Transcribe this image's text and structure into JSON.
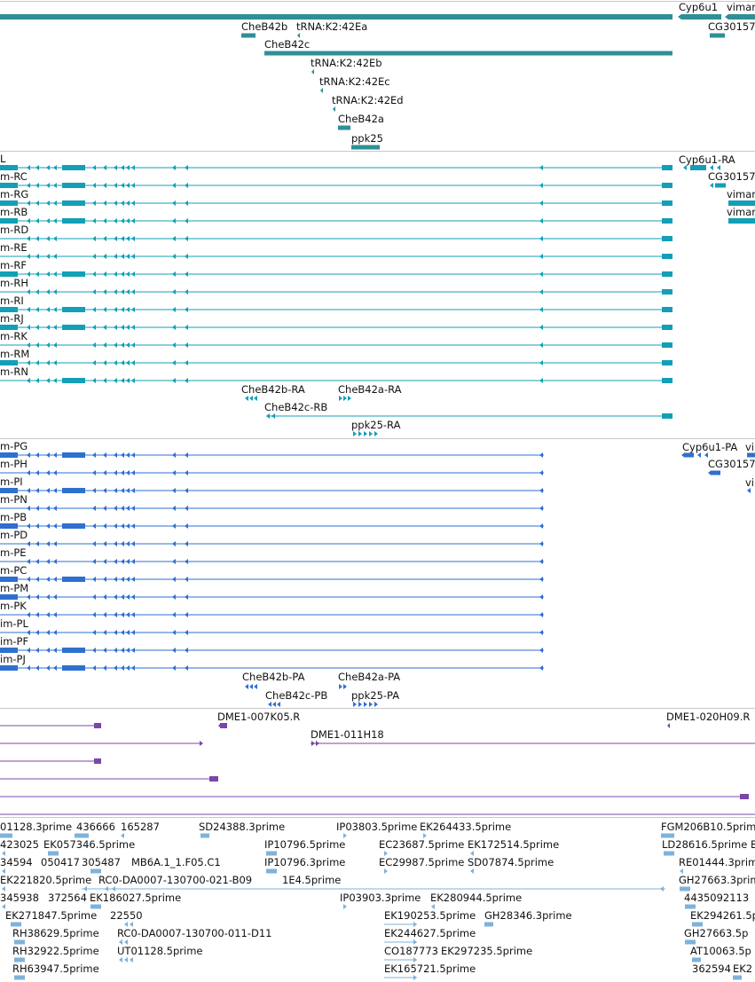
{
  "colors": {
    "gene": "#2f8f95",
    "mrna": "#139fb6",
    "protein": "#2f6fcf",
    "clone": "#7a47a9",
    "est": "#7fb2d9",
    "divider": "#c8c8c8"
  },
  "tracks": {
    "genes": {
      "features": [
        {
          "label": "Cyp6u1"
        },
        {
          "label": "vimar"
        },
        {
          "label": "CheB42b"
        },
        {
          "label": "tRNA:K2:42Ea"
        },
        {
          "label": "CG30157"
        },
        {
          "label": "CheB42c"
        },
        {
          "label": "tRNA:K2:42Eb"
        },
        {
          "label": "tRNA:K2:42Ec"
        },
        {
          "label": "tRNA:K2:42Ed"
        },
        {
          "label": "CheB42a"
        },
        {
          "label": "ppk25"
        }
      ]
    },
    "transcripts": {
      "features": [
        {
          "label": "L"
        },
        {
          "label": "Cyp6u1-RA"
        },
        {
          "label": "m-RC"
        },
        {
          "label": "CG30157"
        },
        {
          "label": "m-RG"
        },
        {
          "label": "vimar"
        },
        {
          "label": "m-RB"
        },
        {
          "label": "vimar"
        },
        {
          "label": "m-RD"
        },
        {
          "label": "m-RE"
        },
        {
          "label": "m-RF"
        },
        {
          "label": "m-RH"
        },
        {
          "label": "m-RI"
        },
        {
          "label": "m-RJ"
        },
        {
          "label": "m-RK"
        },
        {
          "label": "m-RM"
        },
        {
          "label": "m-RN"
        },
        {
          "label": "CheB42b-RA"
        },
        {
          "label": "CheB42a-RA"
        },
        {
          "label": "CheB42c-RB"
        },
        {
          "label": "ppk25-RA"
        }
      ]
    },
    "polypeptides": {
      "features": [
        {
          "label": "m-PG"
        },
        {
          "label": "Cyp6u1-PA"
        },
        {
          "label": "vi"
        },
        {
          "label": "m-PH"
        },
        {
          "label": "CG30157"
        },
        {
          "label": "m-PI"
        },
        {
          "label": "vi"
        },
        {
          "label": "m-PN"
        },
        {
          "label": "m-PB"
        },
        {
          "label": "m-PD"
        },
        {
          "label": "m-PE"
        },
        {
          "label": "m-PC"
        },
        {
          "label": "m-PM"
        },
        {
          "label": "m-PK"
        },
        {
          "label": "im-PL"
        },
        {
          "label": "im-PF"
        },
        {
          "label": "im-PJ"
        },
        {
          "label": "CheB42b-PA"
        },
        {
          "label": "CheB42a-PA"
        },
        {
          "label": "CheB42c-PB"
        },
        {
          "label": "ppk25-PA"
        }
      ]
    },
    "clones": {
      "features": [
        {
          "label": "DME1-007K05.R"
        },
        {
          "label": "DME1-020H09.R"
        },
        {
          "label": "DME1-011H18"
        }
      ]
    },
    "ests": {
      "features": [
        {
          "label": "01128.3prime"
        },
        {
          "label": "436666"
        },
        {
          "label": "165287"
        },
        {
          "label": "SD24388.3prime"
        },
        {
          "label": "IP03803.5prime"
        },
        {
          "label": "EK264433.5prime"
        },
        {
          "label": "FGM206B10.5prime"
        },
        {
          "label": "423025"
        },
        {
          "label": "EK057346.5prime"
        },
        {
          "label": "IP10796.5prime"
        },
        {
          "label": "EC23687.5prime"
        },
        {
          "label": "EK172514.5prime"
        },
        {
          "label": "LD28616.5prime"
        },
        {
          "label": "E"
        },
        {
          "label": "34594"
        },
        {
          "label": "050417"
        },
        {
          "label": "305487"
        },
        {
          "label": "MB6A.1_1.F05.C1"
        },
        {
          "label": "IP10796.3prime"
        },
        {
          "label": "EC29987.5prime"
        },
        {
          "label": "SD07874.5prime"
        },
        {
          "label": "RE01444.3prime"
        },
        {
          "label": "EK221820.5prime"
        },
        {
          "label": "RC0-DA0007-130700-021-B09"
        },
        {
          "label": "1E4.5prime"
        },
        {
          "label": "GH27663.3prime"
        },
        {
          "label": "345938"
        },
        {
          "label": "372564"
        },
        {
          "label": "EK186027.5prime"
        },
        {
          "label": "IP03903.3prime"
        },
        {
          "label": "EK280944.5prime"
        },
        {
          "label": "4435092113"
        },
        {
          "label": "EK271847.5prime"
        },
        {
          "label": "22550"
        },
        {
          "label": "EK190253.5prime"
        },
        {
          "label": "GH28346.3prime"
        },
        {
          "label": "EK294261.5p"
        },
        {
          "label": "RH38629.5prime"
        },
        {
          "label": "RC0-DA0007-130700-011-D11"
        },
        {
          "label": "EK244627.5prime"
        },
        {
          "label": "GH27663.5p"
        },
        {
          "label": "RH32922.5prime"
        },
        {
          "label": "UT01128.5prime"
        },
        {
          "label": "CO187773"
        },
        {
          "label": "EK297235.5prime"
        },
        {
          "label": "AT10063.5p"
        },
        {
          "label": "RH63947.5prime"
        },
        {
          "label": "EK165721.5prime"
        },
        {
          "label": "362594"
        },
        {
          "label": "EK2"
        }
      ]
    }
  }
}
